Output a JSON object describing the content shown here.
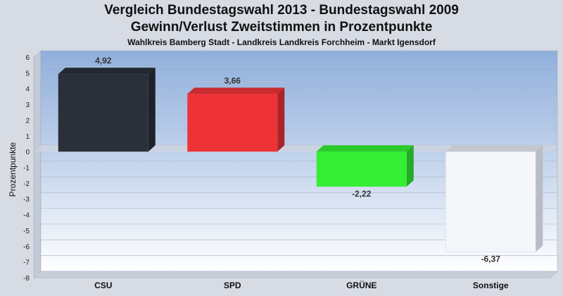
{
  "chart_data": {
    "type": "bar",
    "title": "Vergleich Bundestagswahl 2013 - Bundestagswahl 2009",
    "subtitle": "Gewinn/Verlust Zweitstimmen in Prozentpunkte",
    "caption": "Wahlkreis Bamberg Stadt - Landkreis Landkreis Forchheim - Markt Igensdorf",
    "ylabel": "Prozentpunkte",
    "xlabel": "",
    "ylim": [
      -8,
      6
    ],
    "yticks": [
      6,
      5,
      4,
      3,
      2,
      1,
      0,
      -1,
      -2,
      -3,
      -4,
      -5,
      -6,
      -7,
      -8
    ],
    "grid": true,
    "categories": [
      "CSU",
      "SPD",
      "GRÜNE",
      "Sonstige"
    ],
    "values": [
      4.92,
      3.66,
      -2.22,
      -6.37
    ],
    "value_labels": [
      "4,92",
      "3,66",
      "-2,22",
      "-6,37"
    ],
    "colors": [
      "#2a2f3a",
      "#ee3338",
      "#33ee33",
      "#f4f6fa"
    ]
  }
}
